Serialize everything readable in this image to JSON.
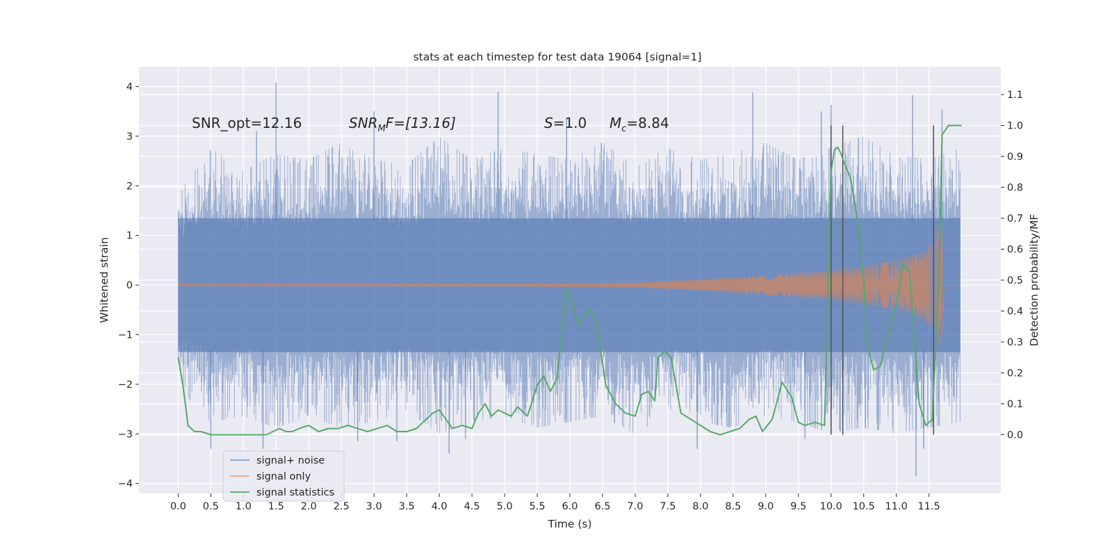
{
  "chart_data": {
    "type": "line",
    "title": "stats at each timestep for test data 19064 [signal=1]",
    "xlabel": "Time (s)",
    "ylabel": "Whitened strain",
    "y2label": "Detection probability/MF",
    "xlim": [
      -0.6,
      12.6
    ],
    "ylim": [
      -4.2,
      4.4
    ],
    "y2lim": [
      -0.19,
      1.19
    ],
    "x_ticks": [
      0.0,
      0.5,
      1.0,
      1.5,
      2.0,
      2.5,
      3.0,
      3.5,
      4.0,
      4.5,
      5.0,
      5.5,
      6.0,
      6.5,
      7.0,
      7.5,
      8.0,
      8.5,
      9.0,
      9.5,
      10.0,
      10.5,
      11.0,
      11.5
    ],
    "x_tick_labels": [
      "0.0",
      "0.5",
      "1.0",
      "1.5",
      "2.0",
      "2.5",
      "3.0",
      "3.5",
      "4.0",
      "4.5",
      "5.0",
      "5.5",
      "6.0",
      "6.5",
      "7.0",
      "7.5",
      "8.0",
      "8.5",
      "9.0",
      "9.5",
      "10.0",
      "10.5",
      "11.0",
      "11.5"
    ],
    "y_ticks": [
      -4,
      -3,
      -2,
      -1,
      0,
      1,
      2,
      3,
      4
    ],
    "y_tick_labels": [
      "−4",
      "−3",
      "−2",
      "−1",
      "0",
      "1",
      "2",
      "3",
      "4"
    ],
    "y2_ticks": [
      0.0,
      0.1,
      0.2,
      0.3,
      0.4,
      0.5,
      0.6,
      0.7,
      0.8,
      0.9,
      1.0,
      1.1
    ],
    "y2_tick_labels": [
      "0.0",
      "0.1",
      "0.2",
      "0.3",
      "0.4",
      "0.5",
      "0.6",
      "0.7",
      "0.8",
      "0.9",
      "1.0",
      "1.1"
    ],
    "grid": true,
    "legend_placement": "lower-left",
    "background": "#eaeaf2",
    "colors": {
      "noise": "#4c72b0",
      "signal": "#dd8452",
      "statistics": "#55a868",
      "markers": "#555555"
    },
    "annotations": {
      "snr_opt": "SNR_opt=12.16",
      "snr_mf_main": "SNR",
      "snr_mf_sub": "M",
      "snr_mf_rest": "F=[13.16]",
      "s_main": "S",
      "s_rest": "=1.0",
      "mc_main": "M",
      "mc_sub": "c",
      "mc_rest": "=8.84"
    },
    "series": [
      {
        "name": "signal+ noise",
        "x_range": [
          0.0,
          11.98
        ],
        "envelope_upper": [
          1.6,
          2.4,
          2.0,
          2.3,
          2.2,
          2.5,
          2.2,
          2.1,
          2.6,
          2.2,
          2.4,
          2.3,
          2.2,
          2.5,
          2.1,
          2.4,
          2.2,
          2.3,
          2.5,
          2.2,
          2.4,
          2.6,
          2.3,
          2.2,
          2.4
        ],
        "envelope_lower": [
          -1.8,
          -2.4,
          -2.3,
          -2.5,
          -2.3,
          -2.5,
          -2.4,
          -2.2,
          -2.6,
          -2.4,
          -2.3,
          -2.5,
          -2.4,
          -2.3,
          -2.6,
          -2.3,
          -2.4,
          -2.5,
          -2.3,
          -2.4,
          -2.6,
          -2.5,
          -2.6,
          -2.5,
          -2.4
        ],
        "peaks": [
          [
            1.5,
            4.08
          ],
          [
            4.9,
            3.9
          ],
          [
            8.8,
            3.88
          ],
          [
            10.0,
            3.63
          ],
          [
            11.25,
            3.83
          ],
          [
            11.7,
            3.55
          ],
          [
            5.95,
            3.35
          ],
          [
            3.0,
            3.5
          ],
          [
            9.85,
            3.5
          ],
          [
            1.2,
            3.1
          ]
        ],
        "troughs": [
          [
            1.3,
            -3.3
          ],
          [
            0.5,
            -3.3
          ],
          [
            4.15,
            -3.4
          ],
          [
            7.95,
            -3.3
          ],
          [
            11.3,
            -3.85
          ],
          [
            11.42,
            -3.3
          ],
          [
            3.35,
            -3.15
          ],
          [
            4.4,
            -3.1
          ],
          [
            9.6,
            -3.1
          ],
          [
            2.75,
            -3.15
          ]
        ]
      },
      {
        "name": "signal only",
        "x_range": [
          0.0,
          11.98
        ],
        "chirp_peak_time": 11.72,
        "amplitude_points": [
          [
            0.0,
            0.02
          ],
          [
            5.0,
            0.03
          ],
          [
            7.0,
            0.05
          ],
          [
            8.0,
            0.12
          ],
          [
            9.0,
            0.2
          ],
          [
            10.0,
            0.3
          ],
          [
            10.5,
            0.38
          ],
          [
            11.0,
            0.5
          ],
          [
            11.3,
            0.62
          ],
          [
            11.55,
            0.85
          ],
          [
            11.68,
            1.3
          ],
          [
            11.78,
            0.5
          ],
          [
            11.85,
            0.05
          ],
          [
            11.98,
            0.02
          ]
        ]
      },
      {
        "name": "signal statistics",
        "x": [
          0.0,
          0.08,
          0.15,
          0.25,
          0.35,
          0.5,
          0.65,
          0.8,
          1.0,
          1.2,
          1.35,
          1.45,
          1.55,
          1.65,
          1.75,
          1.85,
          2.0,
          2.15,
          2.3,
          2.45,
          2.6,
          2.75,
          2.9,
          3.05,
          3.2,
          3.35,
          3.5,
          3.65,
          3.8,
          3.9,
          4.0,
          4.1,
          4.2,
          4.35,
          4.5,
          4.6,
          4.7,
          4.8,
          4.9,
          5.0,
          5.1,
          5.2,
          5.35,
          5.5,
          5.6,
          5.7,
          5.8,
          5.9,
          5.95,
          6.0,
          6.1,
          6.15,
          6.3,
          6.4,
          6.55,
          6.7,
          6.85,
          7.0,
          7.1,
          7.2,
          7.3,
          7.35,
          7.45,
          7.55,
          7.7,
          7.85,
          8.0,
          8.15,
          8.3,
          8.45,
          8.6,
          8.75,
          8.85,
          8.95,
          9.1,
          9.25,
          9.4,
          9.5,
          9.6,
          9.75,
          9.9,
          10.0,
          10.05,
          10.1,
          10.15,
          10.2,
          10.3,
          10.4,
          10.5,
          10.55,
          10.65,
          10.75,
          10.9,
          11.0,
          11.1,
          11.2,
          11.35,
          11.45,
          11.55,
          11.65,
          11.7,
          11.8,
          12.0
        ],
        "values": [
          0.25,
          0.15,
          0.03,
          0.01,
          0.01,
          0.0,
          0.0,
          0.0,
          0.0,
          0.0,
          0.0,
          0.01,
          0.02,
          0.01,
          0.01,
          0.02,
          0.03,
          0.01,
          0.02,
          0.02,
          0.03,
          0.02,
          0.01,
          0.02,
          0.03,
          0.01,
          0.01,
          0.02,
          0.05,
          0.07,
          0.08,
          0.05,
          0.02,
          0.03,
          0.02,
          0.07,
          0.1,
          0.06,
          0.08,
          0.07,
          0.06,
          0.09,
          0.06,
          0.16,
          0.19,
          0.14,
          0.18,
          0.38,
          0.47,
          0.44,
          0.38,
          0.36,
          0.41,
          0.37,
          0.16,
          0.1,
          0.07,
          0.06,
          0.13,
          0.14,
          0.11,
          0.25,
          0.27,
          0.25,
          0.07,
          0.05,
          0.03,
          0.01,
          0.0,
          0.01,
          0.02,
          0.05,
          0.06,
          0.01,
          0.05,
          0.17,
          0.12,
          0.04,
          0.03,
          0.04,
          0.03,
          0.85,
          0.92,
          0.93,
          0.91,
          0.88,
          0.83,
          0.7,
          0.5,
          0.3,
          0.21,
          0.22,
          0.35,
          0.42,
          0.55,
          0.53,
          0.1,
          0.03,
          0.05,
          0.5,
          0.97,
          1.0,
          1.0
        ]
      }
    ],
    "vertical_markers": [
      10.0,
      10.18,
      11.57
    ],
    "legend": [
      "signal+ noise",
      "signal only",
      "signal statistics"
    ]
  }
}
